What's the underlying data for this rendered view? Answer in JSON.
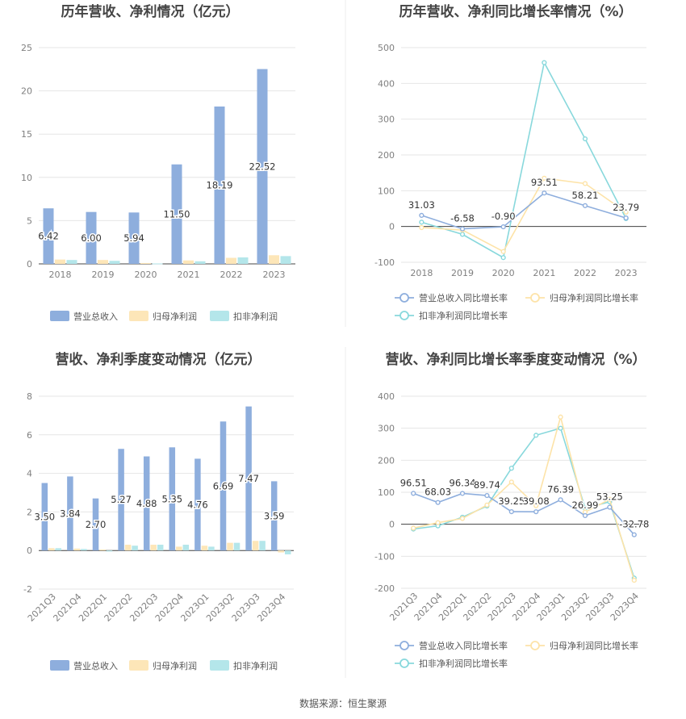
{
  "source": "数据来源：恒生聚源",
  "colors": {
    "revenue": "#8eaedd",
    "net_profit": "#fde6b8",
    "deducted": "#b4e6ea",
    "rev_line": "#8eaedd",
    "np_line": "#fde3a8",
    "ded_line": "#88d8dc"
  },
  "chart_data": [
    {
      "id": "annual_amount",
      "type": "bar",
      "title": "历年营收、净利情况（亿元）",
      "categories": [
        "2018",
        "2019",
        "2020",
        "2021",
        "2022",
        "2023"
      ],
      "ylim": [
        0,
        25
      ],
      "yticks": [
        0,
        5,
        10,
        15,
        20,
        25
      ],
      "series": [
        {
          "name": "营业总收入",
          "values": [
            6.42,
            6.0,
            5.94,
            11.5,
            18.19,
            22.52
          ]
        },
        {
          "name": "归母净利润",
          "values": [
            0.5,
            0.45,
            0.1,
            0.4,
            0.7,
            1.0
          ]
        },
        {
          "name": "扣非净利润",
          "values": [
            0.45,
            0.35,
            0.05,
            0.3,
            0.75,
            0.9
          ]
        }
      ],
      "data_labels": [
        "6.42",
        "6.00",
        "5.94",
        "11.50",
        "18.19",
        "22.52"
      ],
      "legend": "bottom"
    },
    {
      "id": "annual_growth",
      "type": "line",
      "title": "历年营收、净利同比增长率情况（%）",
      "categories": [
        "2018",
        "2019",
        "2020",
        "2021",
        "2022",
        "2023"
      ],
      "ylim": [
        -100,
        500
      ],
      "yticks": [
        -100,
        0,
        100,
        200,
        300,
        400,
        500
      ],
      "series": [
        {
          "name": "营业总收入同比增长率",
          "values": [
            31.03,
            -6.58,
            -0.9,
            93.51,
            58.21,
            23.79
          ]
        },
        {
          "name": "归母净利润同比增长率",
          "values": [
            -3,
            -10,
            -70,
            135,
            120,
            40
          ]
        },
        {
          "name": "扣非净利润同比增长率",
          "values": [
            12,
            -22,
            -87,
            458,
            245,
            22
          ]
        }
      ],
      "data_labels": [
        "31.03",
        "-6.58",
        "-0.90",
        "93.51",
        "58.21",
        "23.79"
      ],
      "legend": "bottom"
    },
    {
      "id": "quarterly_amount",
      "type": "bar",
      "title": "营收、净利季度变动情况（亿元）",
      "categories": [
        "2021Q3",
        "2021Q4",
        "2022Q1",
        "2022Q2",
        "2022Q3",
        "2022Q4",
        "2023Q1",
        "2023Q2",
        "2023Q3",
        "2023Q4"
      ],
      "ylim": [
        -2,
        8
      ],
      "yticks": [
        -2,
        0,
        2,
        4,
        6,
        8
      ],
      "series": [
        {
          "name": "营业总收入",
          "values": [
            3.5,
            3.84,
            2.7,
            5.27,
            4.88,
            5.35,
            4.76,
            6.69,
            7.47,
            3.59
          ]
        },
        {
          "name": "归母净利润",
          "values": [
            0.12,
            0.1,
            0.05,
            0.3,
            0.3,
            0.2,
            0.25,
            0.4,
            0.5,
            -0.1
          ]
        },
        {
          "name": "扣非净利润",
          "values": [
            0.12,
            0.08,
            -0.05,
            0.25,
            0.3,
            0.3,
            0.2,
            0.4,
            0.5,
            -0.2
          ]
        }
      ],
      "data_labels": [
        "3.50",
        "3.84",
        "2.70",
        "5.27",
        "4.88",
        "5.35",
        "4.76",
        "6.69",
        "7.47",
        "3.59"
      ],
      "legend": "bottom"
    },
    {
      "id": "quarterly_growth",
      "type": "line",
      "title": "营收、净利同比增长率季度变动情况（%）",
      "categories": [
        "2021Q3",
        "2021Q4",
        "2022Q1",
        "2022Q2",
        "2022Q3",
        "2022Q4",
        "2023Q1",
        "2023Q2",
        "2023Q3",
        "2023Q4"
      ],
      "ylim": [
        -200,
        400
      ],
      "yticks": [
        -200,
        -100,
        0,
        100,
        200,
        300,
        400
      ],
      "series": [
        {
          "name": "营业总收入同比增长率",
          "values": [
            96.51,
            68.03,
            96.34,
            89.74,
            39.25,
            39.08,
            76.39,
            26.99,
            53.25,
            -32.78
          ]
        },
        {
          "name": "归母净利润同比增长率",
          "values": [
            -12,
            5,
            18,
            60,
            132,
            58,
            335,
            38,
            78,
            -175
          ]
        },
        {
          "name": "扣非净利润同比增长率",
          "values": [
            -15,
            -5,
            22,
            57,
            175,
            278,
            300,
            50,
            70,
            -168
          ]
        }
      ],
      "data_labels": [
        "96.51",
        "68.03",
        "96.34",
        "89.74",
        "39.25",
        "39.08",
        "76.39",
        "26.99",
        "53.25",
        "-32.78"
      ],
      "legend": "bottom"
    }
  ]
}
